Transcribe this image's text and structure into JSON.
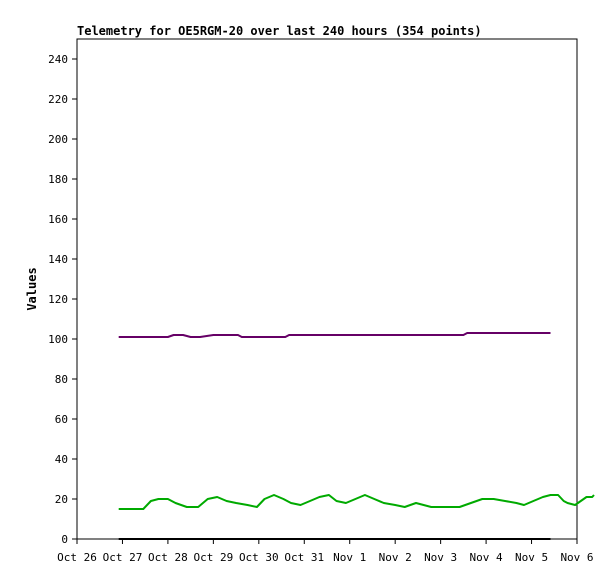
{
  "chart_data": {
    "type": "line",
    "title": "Telemetry for OE5RGM-20 over last 240 hours (354 points)",
    "xlabel": "",
    "ylabel": "Values",
    "ylim": [
      0,
      250
    ],
    "yticks": [
      0,
      20,
      40,
      60,
      80,
      100,
      120,
      140,
      160,
      180,
      200,
      220,
      240
    ],
    "xlim": [
      "Oct 26",
      "Nov 6"
    ],
    "xticks": [
      "Oct 26",
      "Oct 27",
      "Oct 28",
      "Oct 29",
      "Oct 30",
      "Oct 31",
      "Nov 1",
      "Nov 2",
      "Nov 3",
      "Nov 4",
      "Nov 5",
      "Nov 6"
    ],
    "grid": false,
    "legend": "none",
    "series": [
      {
        "color": "#660066",
        "points": [
          [
            "Oct 26 22:00",
            101
          ],
          [
            "Oct 28 00:00",
            101
          ],
          [
            "Oct 28 03:00",
            102
          ],
          [
            "Oct 28 08:00",
            102
          ],
          [
            "Oct 28 12:00",
            101
          ],
          [
            "Oct 28 17:00",
            101
          ],
          [
            "Oct 29 00:00",
            102
          ],
          [
            "Oct 29 13:00",
            102
          ],
          [
            "Oct 29 15:00",
            101
          ],
          [
            "Oct 30 14:00",
            101
          ],
          [
            "Oct 30 16:00",
            102
          ],
          [
            "Nov 3 12:00",
            102
          ],
          [
            "Nov 3 14:00",
            103
          ],
          [
            "Nov 5 10:00",
            103
          ]
        ]
      },
      {
        "color": "#00aa00",
        "points": [
          [
            "Oct 26 22:00",
            15
          ],
          [
            "Oct 27 11:00",
            15
          ],
          [
            "Oct 27 15:00",
            19
          ],
          [
            "Oct 27 19:00",
            20
          ],
          [
            "Oct 28 00:00",
            20
          ],
          [
            "Oct 28 04:00",
            18
          ],
          [
            "Oct 28 10:00",
            16
          ],
          [
            "Oct 28 16:00",
            16
          ],
          [
            "Oct 28 21:00",
            20
          ],
          [
            "Oct 29 02:00",
            21
          ],
          [
            "Oct 29 07:00",
            19
          ],
          [
            "Oct 29 12:00",
            18
          ],
          [
            "Oct 29 18:00",
            17
          ],
          [
            "Oct 29 23:00",
            16
          ],
          [
            "Oct 30 03:00",
            20
          ],
          [
            "Oct 30 08:00",
            22
          ],
          [
            "Oct 30 13:00",
            20
          ],
          [
            "Oct 30 17:00",
            18
          ],
          [
            "Oct 30 22:00",
            17
          ],
          [
            "Oct 31 03:00",
            19
          ],
          [
            "Oct 31 08:00",
            21
          ],
          [
            "Oct 31 13:00",
            22
          ],
          [
            "Oct 31 17:00",
            19
          ],
          [
            "Oct 31 22:00",
            18
          ],
          [
            "Nov 1 03:00",
            20
          ],
          [
            "Nov 1 08:00",
            22
          ],
          [
            "Nov 1 13:00",
            20
          ],
          [
            "Nov 1 18:00",
            18
          ],
          [
            "Nov 2 00:00",
            17
          ],
          [
            "Nov 2 05:00",
            16
          ],
          [
            "Nov 2 08:00",
            17
          ],
          [
            "Nov 2 11:00",
            18
          ],
          [
            "Nov 2 15:00",
            17
          ],
          [
            "Nov 2 19:00",
            16
          ],
          [
            "Nov 3 04:00",
            16
          ],
          [
            "Nov 3 10:00",
            16
          ],
          [
            "Nov 3 16:00",
            18
          ],
          [
            "Nov 3 22:00",
            20
          ],
          [
            "Nov 4 04:00",
            20
          ],
          [
            "Nov 4 10:00",
            19
          ],
          [
            "Nov 4 16:00",
            18
          ],
          [
            "Nov 4 20:00",
            17
          ],
          [
            "Nov 5 01:00",
            19
          ],
          [
            "Nov 5 06:00",
            21
          ],
          [
            "Nov 5 10:00",
            22
          ],
          [
            "Nov 5 14:00",
            22
          ],
          [
            "Nov 5 17:00",
            19
          ],
          [
            "Nov 5 19:00",
            18
          ],
          [
            "Nov 5 23:00",
            17
          ],
          [
            "Nov 6 02:00",
            19
          ],
          [
            "Nov 6 05:00",
            21
          ],
          [
            "Nov 6 08:00",
            21
          ],
          [
            "Nov 6 09:00",
            22
          ]
        ]
      },
      {
        "color": "#000000",
        "points": [
          [
            "Oct 26 22:00",
            0
          ],
          [
            "Nov 5 10:00",
            0
          ]
        ]
      }
    ]
  }
}
